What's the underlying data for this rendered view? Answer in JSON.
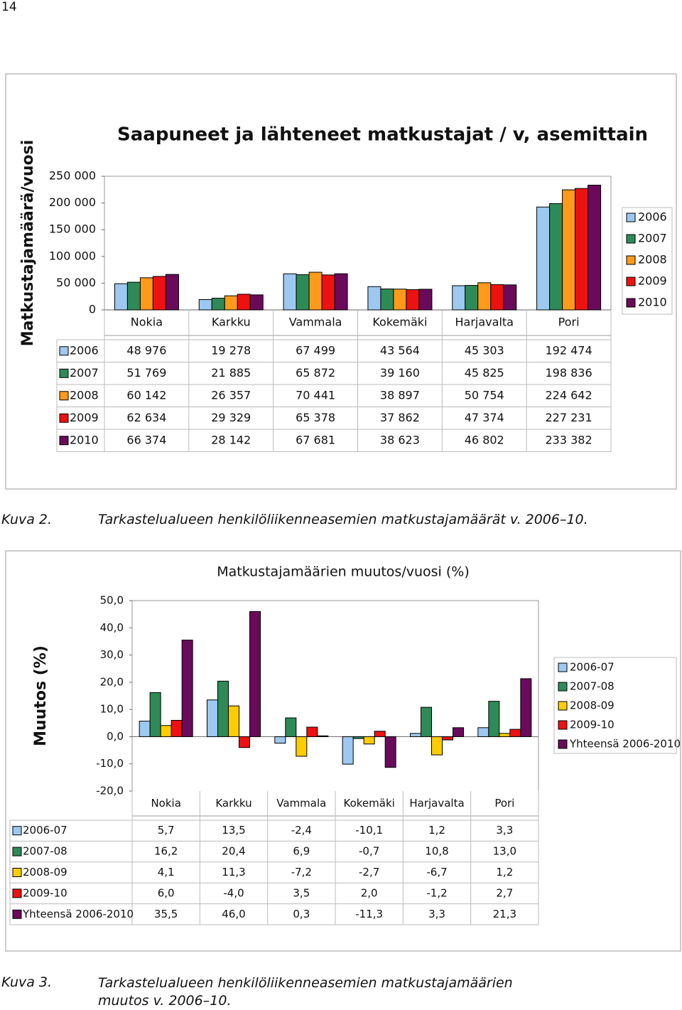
{
  "page_number": "14",
  "chart_data": [
    {
      "type": "bar",
      "title": "Saapuneet ja lähteneet matkustajat / v, asemittain",
      "y_label": "Matkustajamäärä/vuosi",
      "categories": [
        "Nokia",
        "Karkku",
        "Vammala",
        "Kokemäki",
        "Harjavalta",
        "Pori"
      ],
      "series": [
        {
          "name": "2006",
          "color": "#9dc8f0",
          "values": [
            48976,
            19278,
            67499,
            43564,
            45303,
            192474
          ],
          "value_labels": [
            "48 976",
            "19 278",
            "67 499",
            "43 564",
            "45 303",
            "192 474"
          ]
        },
        {
          "name": "2007",
          "color": "#2e8b57",
          "values": [
            51769,
            21885,
            65872,
            39160,
            45825,
            198836
          ],
          "value_labels": [
            "51 769",
            "21 885",
            "65 872",
            "39 160",
            "45 825",
            "198 836"
          ]
        },
        {
          "name": "2008",
          "color": "#ff9a1a",
          "values": [
            60142,
            26357,
            70441,
            38897,
            50754,
            224642
          ],
          "value_labels": [
            "60 142",
            "26 357",
            "70 441",
            "38 897",
            "50 754",
            "224 642"
          ]
        },
        {
          "name": "2009",
          "color": "#ee1111",
          "values": [
            62634,
            29329,
            65378,
            37862,
            47374,
            227231
          ],
          "value_labels": [
            "62 634",
            "29 329",
            "65 378",
            "37 862",
            "47 374",
            "227 231"
          ]
        },
        {
          "name": "2010",
          "color": "#6a0a5a",
          "values": [
            66374,
            28142,
            67681,
            38623,
            46802,
            233382
          ],
          "value_labels": [
            "66 374",
            "28 142",
            "67 681",
            "38 623",
            "46 802",
            "233 382"
          ]
        }
      ],
      "ylim": [
        0,
        250000
      ],
      "yticks": [
        0,
        {
          "value": 50000,
          "label": "50 000"
        },
        {
          "value": 100000,
          "label": "100 000"
        },
        {
          "value": 150000,
          "label": "150 000"
        },
        {
          "value": 200000,
          "label": "200 000"
        },
        {
          "value": 250000,
          "label": "250 000"
        }
      ],
      "grid": false,
      "legend": "right"
    },
    {
      "type": "bar",
      "title": "Matkustajamäärien muutos/vuosi (%)",
      "y_label": "Muutos (%)",
      "categories": [
        "Nokia",
        "Karkku",
        "Vammala",
        "Kokemäki",
        "Harjavalta",
        "Pori"
      ],
      "series": [
        {
          "name": "2006-07",
          "color": "#9dc8f0",
          "values": [
            5.7,
            13.5,
            -2.4,
            -10.1,
            1.2,
            3.3
          ],
          "value_labels": [
            "5,7",
            "13,5",
            "-2,4",
            "-10,1",
            "1,2",
            "3,3"
          ]
        },
        {
          "name": "2007-08",
          "color": "#2e8b57",
          "values": [
            16.2,
            20.4,
            6.9,
            -0.7,
            10.8,
            13.0
          ],
          "value_labels": [
            "16,2",
            "20,4",
            "6,9",
            "-0,7",
            "10,8",
            "13,0"
          ]
        },
        {
          "name": "2008-09",
          "color": "#ffcc00",
          "values": [
            4.1,
            11.3,
            -7.2,
            -2.7,
            -6.7,
            1.2
          ],
          "value_labels": [
            "4,1",
            "11,3",
            "-7,2",
            "-2,7",
            "-6,7",
            "1,2"
          ]
        },
        {
          "name": "2009-10",
          "color": "#ee1111",
          "values": [
            6.0,
            -4.0,
            3.5,
            2.0,
            -1.2,
            2.7
          ],
          "value_labels": [
            "6,0",
            "-4,0",
            "3,5",
            "2,0",
            "-1,2",
            "2,7"
          ]
        },
        {
          "name": "Yhteensä 2006-2010",
          "color": "#6a0a5a",
          "values": [
            35.5,
            46.0,
            0.3,
            -11.3,
            3.3,
            21.3
          ],
          "value_labels": [
            "35,5",
            "46,0",
            "0,3",
            "-11,3",
            "3,3",
            "21,3"
          ]
        }
      ],
      "ylim": [
        -20,
        50
      ],
      "yticks": [
        {
          "value": -20,
          "label": "-20,0"
        },
        {
          "value": -10,
          "label": "-10,0"
        },
        {
          "value": 0,
          "label": "0,0"
        },
        {
          "value": 10,
          "label": "10,0"
        },
        {
          "value": 20,
          "label": "20,0"
        },
        {
          "value": 30,
          "label": "30,0"
        },
        {
          "value": 40,
          "label": "40,0"
        },
        {
          "value": 50,
          "label": "50,0"
        }
      ],
      "grid": false,
      "legend": "right"
    }
  ],
  "captions": [
    {
      "label": "Kuva 2.",
      "text": "Tarkastelualueen henkilöliikenneasemien matkustajamäärät v. 2006–10."
    },
    {
      "label": "Kuva 3.",
      "text": "Tarkastelualueen henkilöliikenneasemien matkustajamäärien muutos v. 2006–10."
    }
  ]
}
